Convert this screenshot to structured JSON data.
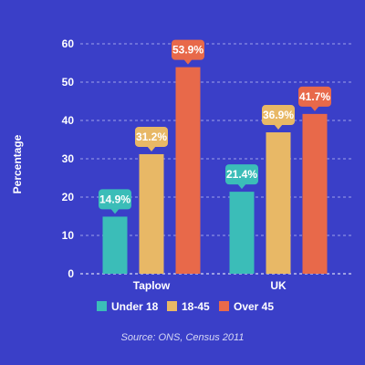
{
  "colors": {
    "background": "#3a3fc8",
    "grid": "#9ea2ea",
    "axis": "#ffffff"
  },
  "chart_data": {
    "type": "bar",
    "categories": [
      "Taplow",
      "UK"
    ],
    "series": [
      {
        "name": "Under 18",
        "values": [
          14.9,
          21.4
        ],
        "color": "#3bbdb8"
      },
      {
        "name": "18-45",
        "values": [
          31.2,
          36.9
        ],
        "color": "#e8b866"
      },
      {
        "name": "Over 45",
        "values": [
          53.9,
          41.7
        ],
        "color": "#e8694a"
      }
    ],
    "ylabel": "Percentage",
    "ylim": [
      0,
      60
    ],
    "yticks": [
      0,
      10,
      20,
      30,
      40,
      50,
      60
    ],
    "grid": true,
    "legend_position": "bottom",
    "value_suffix": "%",
    "source": "Source: ONS, Census 2011"
  }
}
